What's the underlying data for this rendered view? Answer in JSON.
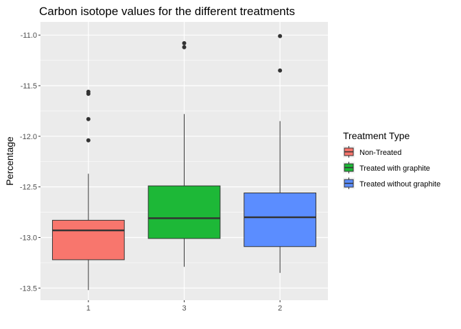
{
  "chart_data": {
    "type": "boxplot",
    "title": "Carbon isotope values for the different treatments",
    "xlabel": "",
    "ylabel": "Percentage",
    "ylim": [
      -13.62,
      -10.87
    ],
    "yticks": [
      "-11.0",
      "-11.5",
      "-12.0",
      "-12.5",
      "-13.0",
      "-13.5"
    ],
    "ytick_values": [
      -11.0,
      -11.5,
      -12.0,
      -12.5,
      -13.0,
      -13.5
    ],
    "categories": [
      "1",
      "3",
      "2"
    ],
    "grid": true,
    "legend_position": "right",
    "legend": {
      "title": "Treatment Type",
      "items": [
        "Non-Treated",
        "Treated with graphite",
        "Treated without graphite"
      ]
    },
    "series": [
      {
        "category": "1",
        "legend": "Non-Treated",
        "color": "#F8766D",
        "min": -13.52,
        "q1": -13.22,
        "median": -12.93,
        "q3": -12.83,
        "max": -12.37,
        "outliers": [
          -11.56,
          -11.58,
          -11.83,
          -12.04
        ]
      },
      {
        "category": "3",
        "legend": "Treated with graphite",
        "color": "#1DB837",
        "min": -13.29,
        "q1": -13.01,
        "median": -12.81,
        "q3": -12.49,
        "max": -11.78,
        "outliers": [
          -11.08,
          -11.12
        ]
      },
      {
        "category": "2",
        "legend": "Treated without graphite",
        "color": "#5B8DFF",
        "min": -13.35,
        "q1": -13.09,
        "median": -12.8,
        "q3": -12.56,
        "max": -11.85,
        "outliers": [
          -11.01,
          -11.35
        ]
      }
    ],
    "panel_background": "#EBEBEB"
  }
}
